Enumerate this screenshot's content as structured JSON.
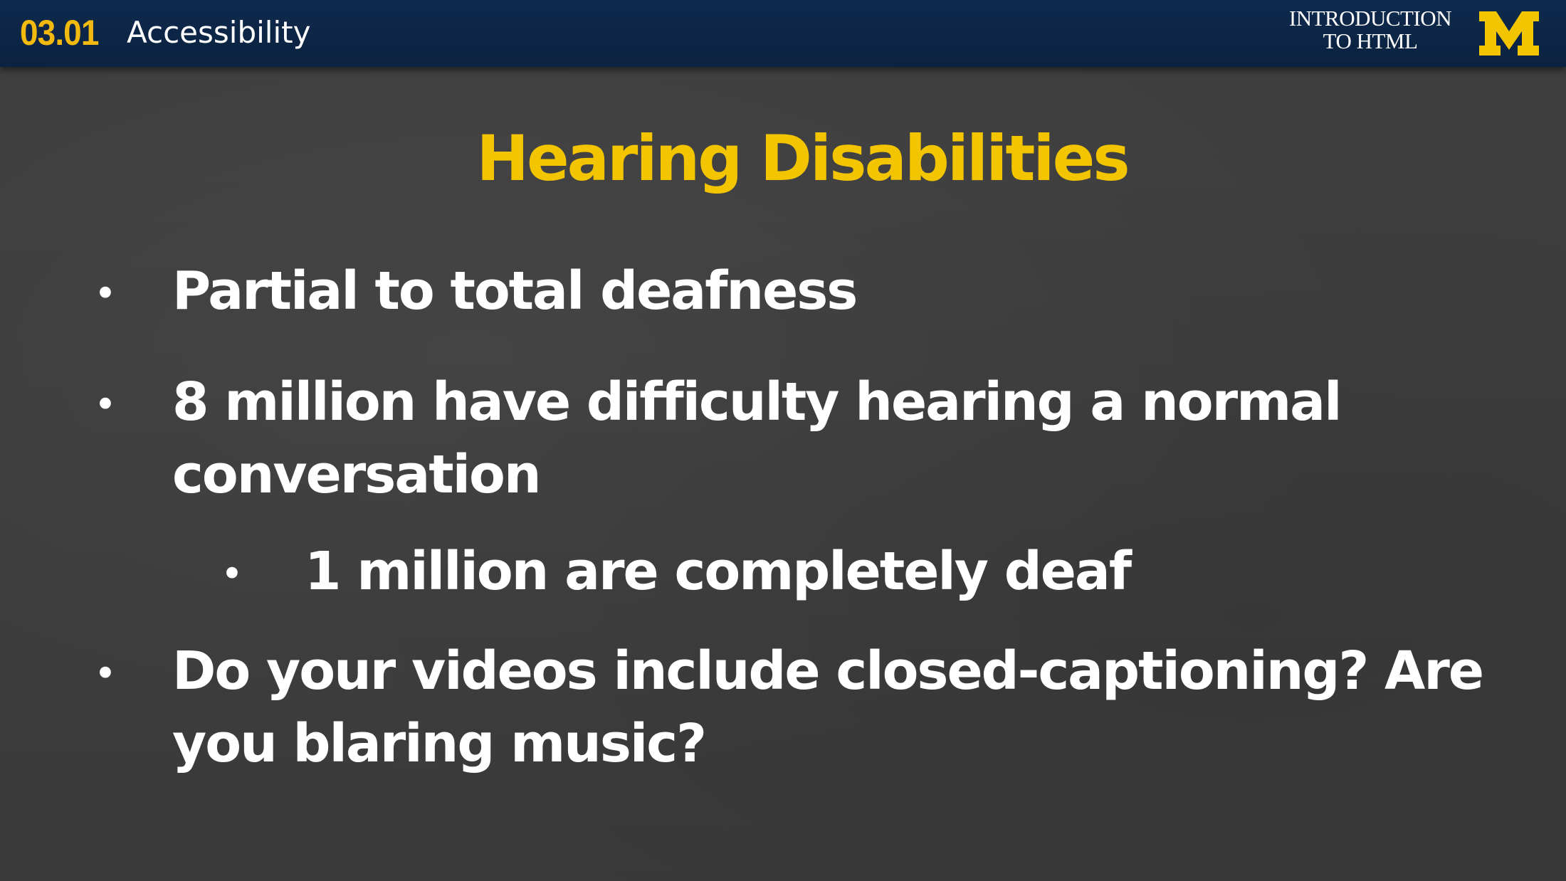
{
  "header": {
    "lesson_number": "03.01",
    "lesson_title": "Accessibility",
    "course_title_line1": "INTRODUCTION",
    "course_title_line2": "TO HTML",
    "logo_icon": "block-m-logo-icon",
    "bar_color": "#0b2240",
    "accent_color": "#f2b90f"
  },
  "slide": {
    "title": "Hearing Disabilities",
    "title_color": "#f2c500",
    "bullets": [
      {
        "level": 1,
        "lines": [
          "Partial to total deafness"
        ]
      },
      {
        "level": 1,
        "lines": [
          "8 million have difficulty hearing a normal",
          "conversation"
        ]
      },
      {
        "level": 2,
        "lines": [
          "1 million are completely deaf"
        ]
      },
      {
        "level": 1,
        "lines": [
          "Do your videos include closed-captioning?  Are",
          "you blaring music?"
        ]
      }
    ],
    "bullet_symbol": "•"
  }
}
